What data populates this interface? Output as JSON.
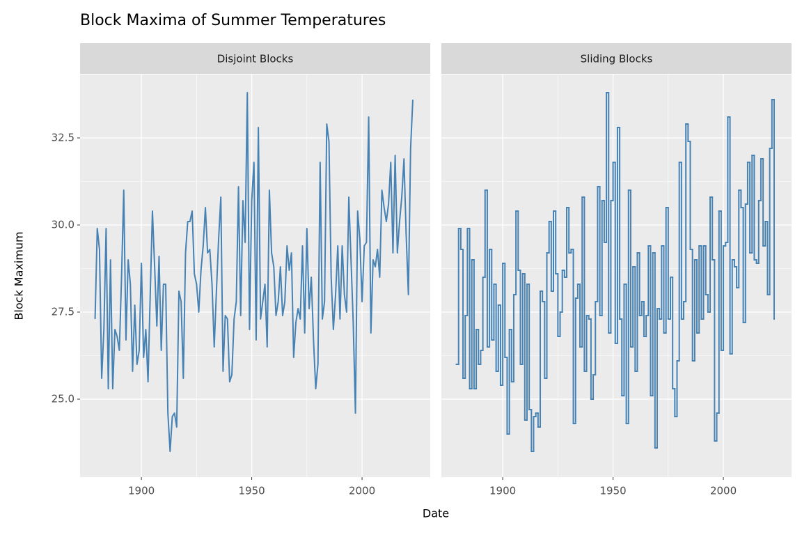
{
  "title": "Block Maxima of Summer Temperatures",
  "x_label": "Date",
  "y_label": "Block Maximum",
  "chart_data": [
    {
      "type": "line",
      "title": "Disjoint Blocks",
      "color": "#4682b4",
      "x": [
        1879,
        1880,
        1881,
        1882,
        1883,
        1884,
        1885,
        1886,
        1887,
        1888,
        1889,
        1890,
        1891,
        1892,
        1893,
        1894,
        1895,
        1896,
        1897,
        1898,
        1899,
        1900,
        1901,
        1902,
        1903,
        1904,
        1905,
        1906,
        1907,
        1908,
        1909,
        1910,
        1911,
        1912,
        1913,
        1914,
        1915,
        1916,
        1917,
        1918,
        1919,
        1920,
        1921,
        1922,
        1923,
        1924,
        1925,
        1926,
        1927,
        1928,
        1929,
        1930,
        1931,
        1932,
        1933,
        1934,
        1935,
        1936,
        1937,
        1938,
        1939,
        1940,
        1941,
        1942,
        1943,
        1944,
        1945,
        1946,
        1947,
        1948,
        1949,
        1950,
        1951,
        1952,
        1953,
        1954,
        1955,
        1956,
        1957,
        1958,
        1959,
        1960,
        1961,
        1962,
        1963,
        1964,
        1965,
        1966,
        1967,
        1968,
        1969,
        1970,
        1971,
        1972,
        1973,
        1974,
        1975,
        1976,
        1977,
        1978,
        1979,
        1980,
        1981,
        1982,
        1983,
        1984,
        1985,
        1986,
        1987,
        1988,
        1989,
        1990,
        1991,
        1992,
        1993,
        1994,
        1995,
        1996,
        1997,
        1998,
        1999,
        2000,
        2001,
        2002,
        2003,
        2004,
        2005,
        2006,
        2007,
        2008,
        2009,
        2010,
        2011,
        2012,
        2013,
        2014,
        2015,
        2016,
        2017,
        2018,
        2019,
        2020,
        2021,
        2022,
        2023
      ],
      "values": [
        27.3,
        29.9,
        29.3,
        25.6,
        27.0,
        29.9,
        25.3,
        29.0,
        25.3,
        27.0,
        26.8,
        26.4,
        28.5,
        31.0,
        26.7,
        29.0,
        28.3,
        25.8,
        27.7,
        26.0,
        26.4,
        28.9,
        26.2,
        27.0,
        25.5,
        28.0,
        30.4,
        28.8,
        27.1,
        29.1,
        26.4,
        28.3,
        28.3,
        24.6,
        23.5,
        24.5,
        24.6,
        24.2,
        28.1,
        27.8,
        25.6,
        29.2,
        30.1,
        30.1,
        30.4,
        28.6,
        28.3,
        27.5,
        28.7,
        29.4,
        30.5,
        29.2,
        29.3,
        28.3,
        26.5,
        28.1,
        29.6,
        30.8,
        25.8,
        27.4,
        27.3,
        25.5,
        25.7,
        27.3,
        27.8,
        31.1,
        27.4,
        30.7,
        29.5,
        33.8,
        27.0,
        30.7,
        31.8,
        26.7,
        32.8,
        27.3,
        27.8,
        28.3,
        26.5,
        31.0,
        29.2,
        28.8,
        27.4,
        27.8,
        28.8,
        27.4,
        27.8,
        29.4,
        28.7,
        29.2,
        26.2,
        27.2,
        27.6,
        27.3,
        29.4,
        26.9,
        29.9,
        27.6,
        28.5,
        26.7,
        25.3,
        26.0,
        31.8,
        27.3,
        27.8,
        32.9,
        32.4,
        28.5,
        27.0,
        28.0,
        29.4,
        27.3,
        29.4,
        28.0,
        27.5,
        30.8,
        29.0,
        27.2,
        24.6,
        30.4,
        29.6,
        27.8,
        29.4,
        29.5,
        33.1,
        26.9,
        29.0,
        28.8,
        29.3,
        28.5,
        31.0,
        30.5,
        30.1,
        30.6,
        31.8,
        29.2,
        32.0,
        29.2,
        30.1,
        30.8,
        31.9,
        29.7,
        28.0,
        32.2,
        33.6
      ],
      "xlim": [
        1872.2,
        2030.9
      ],
      "xticks": [
        1900,
        1950,
        2000
      ],
      "ylim": [
        22.76,
        34.32
      ],
      "yticks": [
        {
          "value": 25,
          "label": "25.0"
        },
        {
          "value": 27.5,
          "label": "27.5"
        },
        {
          "value": 30,
          "label": "30.0"
        },
        {
          "value": 32.5,
          "label": "32.5"
        }
      ],
      "grid": true
    },
    {
      "type": "step",
      "title": "Sliding Blocks",
      "color": "#4682b4",
      "x": [
        1879,
        1880,
        1881,
        1882,
        1883,
        1884,
        1885,
        1886,
        1887,
        1888,
        1889,
        1890,
        1891,
        1892,
        1893,
        1894,
        1895,
        1896,
        1897,
        1898,
        1899,
        1900,
        1901,
        1902,
        1903,
        1904,
        1905,
        1906,
        1907,
        1908,
        1909,
        1910,
        1911,
        1912,
        1913,
        1914,
        1915,
        1916,
        1917,
        1918,
        1919,
        1920,
        1921,
        1922,
        1923,
        1924,
        1925,
        1926,
        1927,
        1928,
        1929,
        1930,
        1931,
        1932,
        1933,
        1934,
        1935,
        1936,
        1937,
        1938,
        1939,
        1940,
        1941,
        1942,
        1943,
        1944,
        1945,
        1946,
        1947,
        1948,
        1949,
        1950,
        1951,
        1952,
        1953,
        1954,
        1955,
        1956,
        1957,
        1958,
        1959,
        1960,
        1961,
        1962,
        1963,
        1964,
        1965,
        1966,
        1967,
        1968,
        1969,
        1970,
        1971,
        1972,
        1973,
        1974,
        1975,
        1976,
        1977,
        1978,
        1979,
        1980,
        1981,
        1982,
        1983,
        1984,
        1985,
        1986,
        1987,
        1988,
        1989,
        1990,
        1991,
        1992,
        1993,
        1994,
        1995,
        1996,
        1997,
        1998,
        1999,
        2000,
        2001,
        2002,
        2003,
        2004,
        2005,
        2006,
        2007,
        2008,
        2009,
        2010,
        2011,
        2012,
        2013,
        2014,
        2015,
        2016,
        2017,
        2018,
        2019,
        2020,
        2021,
        2022,
        2023
      ],
      "values": [
        26.0,
        29.9,
        29.3,
        25.6,
        27.4,
        29.9,
        25.3,
        29.0,
        25.3,
        27.0,
        26.0,
        26.4,
        28.5,
        31.0,
        26.5,
        29.3,
        26.7,
        28.3,
        25.8,
        27.7,
        25.4,
        28.9,
        26.2,
        24.0,
        27.0,
        25.5,
        28.0,
        30.4,
        28.7,
        26.0,
        28.6,
        24.4,
        28.3,
        24.7,
        23.5,
        24.5,
        24.6,
        24.2,
        28.1,
        27.8,
        25.6,
        29.2,
        30.1,
        28.1,
        30.4,
        28.6,
        26.8,
        27.5,
        28.7,
        28.5,
        30.5,
        29.2,
        29.3,
        24.3,
        27.9,
        28.3,
        26.5,
        30.8,
        25.8,
        27.4,
        27.3,
        25.0,
        25.7,
        27.8,
        31.1,
        27.4,
        30.7,
        29.5,
        33.8,
        26.9,
        30.7,
        31.8,
        26.6,
        32.8,
        27.3,
        25.1,
        28.3,
        24.3,
        31.0,
        26.5,
        28.8,
        25.8,
        29.2,
        27.4,
        27.8,
        26.8,
        27.4,
        29.4,
        25.1,
        29.2,
        23.6,
        27.6,
        27.3,
        29.4,
        26.9,
        30.5,
        27.3,
        28.5,
        25.3,
        24.5,
        26.1,
        31.8,
        27.3,
        27.8,
        32.9,
        32.4,
        29.3,
        26.1,
        29.0,
        26.9,
        29.4,
        27.3,
        29.4,
        28.0,
        27.5,
        30.8,
        29.0,
        23.8,
        24.6,
        30.4,
        26.4,
        29.4,
        29.5,
        33.1,
        26.3,
        29.0,
        28.8,
        28.2,
        31.0,
        30.5,
        27.2,
        30.6,
        31.8,
        29.2,
        32.0,
        29.0,
        28.9,
        30.7,
        31.9,
        29.4,
        30.1,
        28.0,
        32.2,
        33.6,
        27.3
      ],
      "xlim": [
        1872.2,
        2030.9
      ],
      "xticks": [
        1900,
        1950,
        2000
      ],
      "ylim": [
        22.76,
        34.32
      ],
      "yticks": [
        {
          "value": 25,
          "label": "25.0"
        },
        {
          "value": 27.5,
          "label": "27.5"
        },
        {
          "value": 30,
          "label": "30.0"
        },
        {
          "value": 32.5,
          "label": "32.5"
        }
      ],
      "grid": true
    }
  ]
}
